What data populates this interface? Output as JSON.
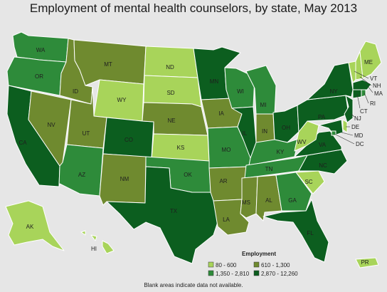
{
  "title": "Employment of mental health counselors, by state, May 2013",
  "legend": {
    "title": "Employment",
    "items": [
      {
        "label": "80 - 600",
        "color": "#a8d45a"
      },
      {
        "label": "610 - 1,300",
        "color": "#6f8a2f"
      },
      {
        "label": "1,350 - 2,810",
        "color": "#2e8b3a"
      },
      {
        "label": "2,870 - 12,260",
        "color": "#0c5e1f"
      }
    ]
  },
  "footnote": "Blank areas indicate data not available.",
  "states": {
    "WA": {
      "label": "WA",
      "bin": 2
    },
    "OR": {
      "label": "OR",
      "bin": 2
    },
    "CA": {
      "label": "CA",
      "bin": 3
    },
    "NV": {
      "label": "NV",
      "bin": 1
    },
    "ID": {
      "label": "ID",
      "bin": 1
    },
    "MT": {
      "label": "MT",
      "bin": 1
    },
    "WY": {
      "label": "WY",
      "bin": 0
    },
    "UT": {
      "label": "UT",
      "bin": 1
    },
    "AZ": {
      "label": "AZ",
      "bin": 2
    },
    "CO": {
      "label": "CO",
      "bin": 3
    },
    "NM": {
      "label": "NM",
      "bin": 1
    },
    "ND": {
      "label": "ND",
      "bin": 0
    },
    "SD": {
      "label": "SD",
      "bin": 0
    },
    "NE": {
      "label": "NE",
      "bin": 1
    },
    "KS": {
      "label": "KS",
      "bin": 0
    },
    "OK": {
      "label": "OK",
      "bin": 2
    },
    "TX": {
      "label": "TX",
      "bin": 3
    },
    "MN": {
      "label": "MN",
      "bin": 3
    },
    "IA": {
      "label": "IA",
      "bin": 1
    },
    "MO": {
      "label": "MO",
      "bin": 2
    },
    "AR": {
      "label": "AR",
      "bin": 1
    },
    "LA": {
      "label": "LA",
      "bin": 1
    },
    "WI": {
      "label": "WI",
      "bin": 2
    },
    "IL": {
      "label": "IL",
      "bin": 3
    },
    "MI": {
      "label": "MI",
      "bin": 2
    },
    "IN": {
      "label": "IN",
      "bin": 1
    },
    "OH": {
      "label": "OH",
      "bin": 3
    },
    "KY": {
      "label": "KY",
      "bin": 2
    },
    "TN": {
      "label": "TN",
      "bin": 2
    },
    "MS": {
      "label": "MS",
      "bin": 1
    },
    "AL": {
      "label": "AL",
      "bin": 1
    },
    "GA": {
      "label": "GA",
      "bin": 2
    },
    "FL": {
      "label": "FL",
      "bin": 3
    },
    "SC": {
      "label": "SC",
      "bin": 0
    },
    "NC": {
      "label": "NC",
      "bin": 3
    },
    "VA": {
      "label": "VA",
      "bin": 3
    },
    "WV": {
      "label": "WV",
      "bin": 0
    },
    "PA": {
      "label": "PA",
      "bin": 3
    },
    "NY": {
      "label": "NY",
      "bin": 3
    },
    "ME": {
      "label": "ME",
      "bin": 0
    },
    "VT": {
      "label": "VT",
      "bin": 0
    },
    "NH": {
      "label": "NH",
      "bin": 0
    },
    "MA": {
      "label": "MA",
      "bin": 3
    },
    "RI": {
      "label": "RI",
      "bin": 2
    },
    "CT": {
      "label": "CT",
      "bin": 3
    },
    "NJ": {
      "label": "NJ",
      "bin": 3
    },
    "DE": {
      "label": "DE",
      "bin": 0
    },
    "MD": {
      "label": "MD",
      "bin": 3
    },
    "DC": {
      "label": "DC",
      "bin": 2
    },
    "AK": {
      "label": "AK",
      "bin": 0
    },
    "HI": {
      "label": "HI",
      "bin": 0
    },
    "PR": {
      "label": "PR",
      "bin": 0
    }
  }
}
